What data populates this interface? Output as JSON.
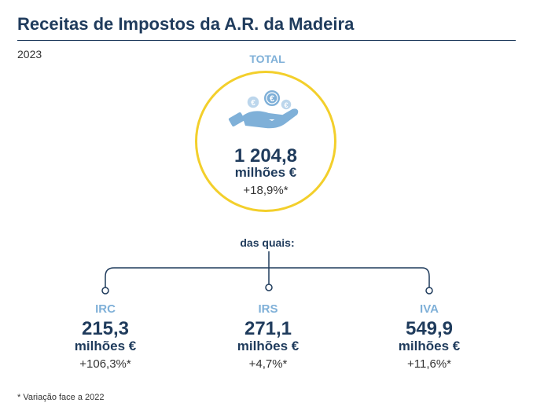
{
  "title": "Receitas de Impostos da A.R. da Madeira",
  "year": "2023",
  "total": {
    "label": "TOTAL",
    "value": "1 204,8",
    "unit": "milhões €",
    "variation": "+18,9%*",
    "icon": "hand-coins-euro-icon"
  },
  "connector_label": "das quais:",
  "items": [
    {
      "label": "IRC",
      "value": "215,3",
      "unit": "milhões €",
      "variation": "+106,3%*"
    },
    {
      "label": "IRS",
      "value": "271,1",
      "unit": "milhões €",
      "variation": "+4,7%*"
    },
    {
      "label": "IVA",
      "value": "549,9",
      "unit": "milhões €",
      "variation": "+11,6%*"
    }
  ],
  "footnote": "* Variação face a 2022",
  "colors": {
    "title": "#1f3b5c",
    "accent_light_blue": "#7fb0d8",
    "circle_border": "#f3cf2b"
  }
}
